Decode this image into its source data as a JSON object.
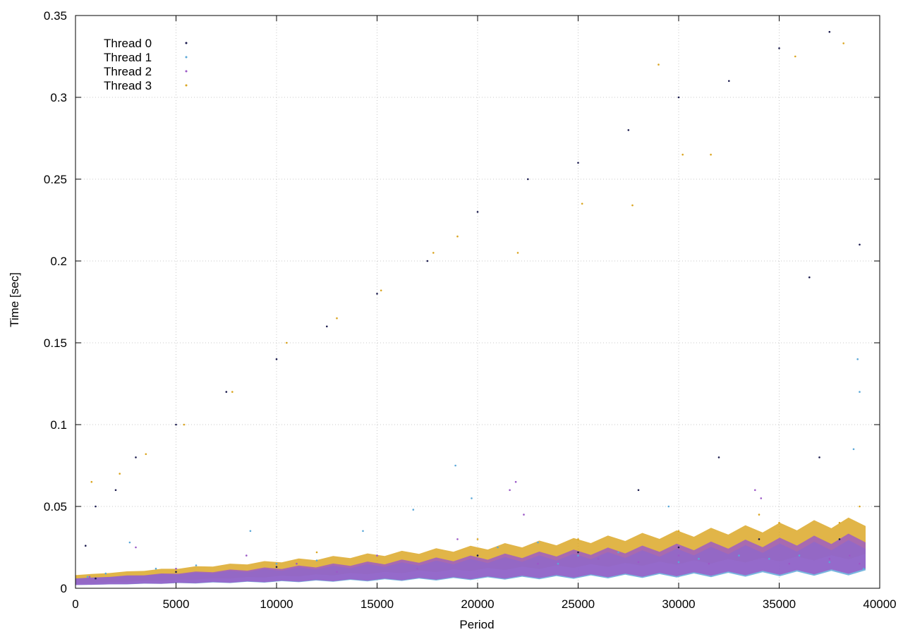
{
  "chart_data": {
    "type": "scatter",
    "title": "",
    "xlabel": "Period",
    "ylabel": "Time [sec]",
    "xlim": [
      0,
      40000
    ],
    "ylim": [
      0,
      0.35
    ],
    "xticks": [
      0,
      5000,
      10000,
      15000,
      20000,
      25000,
      30000,
      35000,
      40000
    ],
    "xtick_labels": [
      "0",
      "5000",
      "10000",
      "15000",
      "20000",
      "25000",
      "30000",
      "35000",
      "40000"
    ],
    "yticks": [
      0,
      0.05,
      0.1,
      0.15,
      0.2,
      0.25,
      0.3,
      0.35
    ],
    "ytick_labels": [
      "0",
      "0.05",
      "0.1",
      "0.15",
      "0.2",
      "0.25",
      "0.3",
      "0.35"
    ],
    "grid": true,
    "legend_position": "top-left",
    "series": [
      {
        "name": "Thread 0",
        "color": "#1a1a4d",
        "points": [
          [
            500,
            0.026
          ],
          [
            1000,
            0.05
          ],
          [
            2000,
            0.06
          ],
          [
            3000,
            0.08
          ],
          [
            5000,
            0.1
          ],
          [
            7500,
            0.12
          ],
          [
            10000,
            0.14
          ],
          [
            12500,
            0.16
          ],
          [
            15000,
            0.18
          ],
          [
            17500,
            0.2
          ],
          [
            20000,
            0.23
          ],
          [
            22500,
            0.25
          ],
          [
            25000,
            0.26
          ],
          [
            27500,
            0.28
          ],
          [
            30000,
            0.3
          ],
          [
            32500,
            0.31
          ],
          [
            35000,
            0.33
          ],
          [
            37500,
            0.34
          ],
          [
            36500,
            0.19
          ],
          [
            37000,
            0.08
          ],
          [
            39000,
            0.21
          ],
          [
            28000,
            0.06
          ],
          [
            32000,
            0.08
          ],
          [
            34000,
            0.03
          ],
          [
            20000,
            0.02
          ],
          [
            10000,
            0.013
          ],
          [
            5000,
            0.01
          ],
          [
            1000,
            0.006
          ],
          [
            25000,
            0.022
          ],
          [
            30000,
            0.025
          ],
          [
            38000,
            0.03
          ]
        ]
      },
      {
        "name": "Thread 1",
        "color": "#5ba8d8",
        "points": [
          [
            600,
            0.007
          ],
          [
            1500,
            0.009
          ],
          [
            2700,
            0.028
          ],
          [
            4000,
            0.012
          ],
          [
            6000,
            0.014
          ],
          [
            8700,
            0.035
          ],
          [
            10000,
            0.015
          ],
          [
            12000,
            0.017
          ],
          [
            14300,
            0.035
          ],
          [
            16800,
            0.048
          ],
          [
            18900,
            0.075
          ],
          [
            19700,
            0.055
          ],
          [
            21000,
            0.025
          ],
          [
            23000,
            0.028
          ],
          [
            25000,
            0.02
          ],
          [
            27000,
            0.022
          ],
          [
            29500,
            0.05
          ],
          [
            31000,
            0.018
          ],
          [
            33000,
            0.02
          ],
          [
            34500,
            0.018
          ],
          [
            36000,
            0.02
          ],
          [
            38700,
            0.085
          ],
          [
            38900,
            0.14
          ],
          [
            39000,
            0.12
          ],
          [
            37500,
            0.016
          ],
          [
            39200,
            0.012
          ],
          [
            30000,
            0.016
          ],
          [
            24000,
            0.015
          ]
        ]
      },
      {
        "name": "Thread 2",
        "color": "#9b59c7",
        "points": [
          [
            700,
            0.007
          ],
          [
            3000,
            0.025
          ],
          [
            5000,
            0.012
          ],
          [
            8500,
            0.02
          ],
          [
            11000,
            0.015
          ],
          [
            15000,
            0.02
          ],
          [
            19000,
            0.03
          ],
          [
            21600,
            0.06
          ],
          [
            21900,
            0.065
          ],
          [
            22300,
            0.045
          ],
          [
            26000,
            0.018
          ],
          [
            30000,
            0.02
          ],
          [
            33800,
            0.06
          ],
          [
            34100,
            0.055
          ],
          [
            35500,
            0.015
          ],
          [
            37500,
            0.018
          ],
          [
            38500,
            0.02
          ],
          [
            39000,
            0.015
          ],
          [
            23000,
            0.015
          ],
          [
            17000,
            0.012
          ],
          [
            13000,
            0.01
          ],
          [
            28000,
            0.016
          ],
          [
            31500,
            0.015
          ]
        ]
      },
      {
        "name": "Thread 3",
        "color": "#daa520",
        "points": [
          [
            800,
            0.065
          ],
          [
            2200,
            0.07
          ],
          [
            3500,
            0.082
          ],
          [
            5400,
            0.1
          ],
          [
            7800,
            0.12
          ],
          [
            10500,
            0.15
          ],
          [
            13000,
            0.165
          ],
          [
            15200,
            0.182
          ],
          [
            17800,
            0.205
          ],
          [
            19000,
            0.215
          ],
          [
            22000,
            0.205
          ],
          [
            25200,
            0.235
          ],
          [
            27700,
            0.234
          ],
          [
            30200,
            0.265
          ],
          [
            31600,
            0.265
          ],
          [
            29000,
            0.32
          ],
          [
            35800,
            0.325
          ],
          [
            38200,
            0.333
          ],
          [
            12000,
            0.022
          ],
          [
            20000,
            0.03
          ],
          [
            25000,
            0.03
          ],
          [
            30000,
            0.035
          ],
          [
            35000,
            0.04
          ],
          [
            38000,
            0.04
          ],
          [
            39000,
            0.05
          ],
          [
            34000,
            0.045
          ]
        ]
      }
    ],
    "bands": [
      {
        "series": "Thread 3",
        "color": "#daa520",
        "x0": 0,
        "x1": 39300,
        "lo0": 0.003,
        "hi0": 0.008,
        "lo1": 0.02,
        "hi1": 0.04
      },
      {
        "series": "Thread 1",
        "color": "#5ba8d8",
        "x0": 0,
        "x1": 39300,
        "lo0": 0.002,
        "hi0": 0.006,
        "lo1": 0.01,
        "hi1": 0.026
      },
      {
        "series": "Thread 2",
        "color": "#9b59c7",
        "x0": 0,
        "x1": 39300,
        "lo0": 0.002,
        "hi0": 0.006,
        "lo1": 0.011,
        "hi1": 0.03
      }
    ]
  }
}
